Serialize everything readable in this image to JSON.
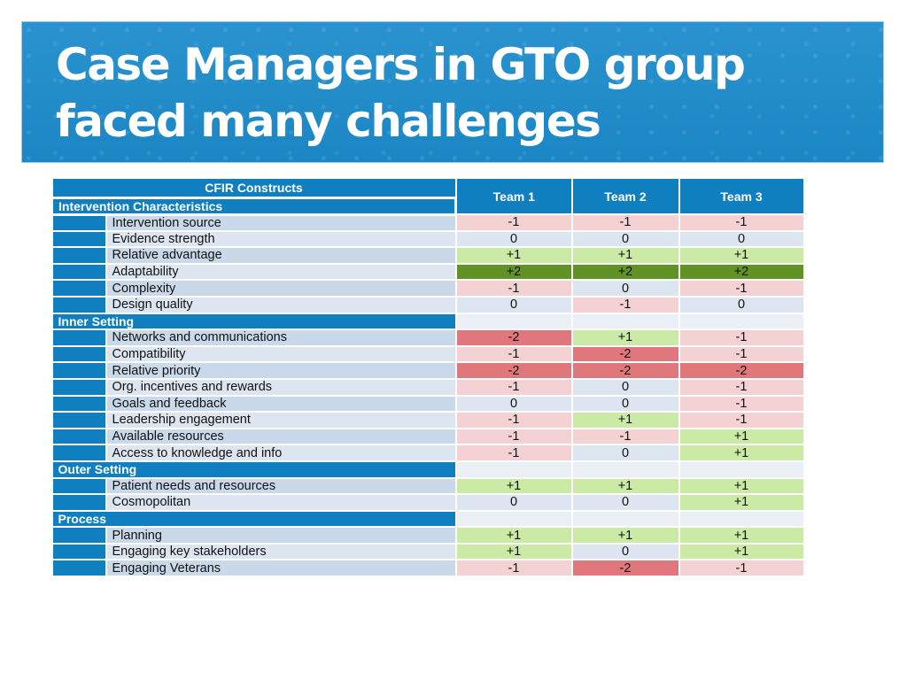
{
  "slide": {
    "title": "Case Managers in GTO group faced many challenges"
  },
  "table": {
    "header": {
      "constructs_label": "CFIR Constructs",
      "teams": [
        "Team 1",
        "Team 2",
        "Team 3"
      ]
    },
    "sections": [
      {
        "name": "Intervention Characteristics",
        "rows": [
          {
            "construct": "Intervention source",
            "values": [
              "-1",
              "-1",
              "-1"
            ]
          },
          {
            "construct": "Evidence strength",
            "values": [
              "0",
              "0",
              "0"
            ]
          },
          {
            "construct": "Relative advantage",
            "values": [
              "+1",
              "+1",
              "+1"
            ]
          },
          {
            "construct": "Adaptability",
            "values": [
              "+2",
              "+2",
              "+2"
            ]
          },
          {
            "construct": "Complexity",
            "values": [
              "-1",
              "0",
              "-1"
            ]
          },
          {
            "construct": "Design quality",
            "values": [
              "0",
              "-1",
              "0"
            ]
          }
        ]
      },
      {
        "name": "Inner Setting",
        "rows": [
          {
            "construct": "Networks and communications",
            "values": [
              "-2",
              "+1",
              "-1"
            ]
          },
          {
            "construct": "Compatibility",
            "values": [
              "-1",
              "-2",
              "-1"
            ]
          },
          {
            "construct": "Relative priority",
            "values": [
              "-2",
              "-2",
              "-2"
            ]
          },
          {
            "construct": "Org. incentives and rewards",
            "values": [
              "-1",
              "0",
              "-1"
            ]
          },
          {
            "construct": "Goals and feedback",
            "values": [
              "0",
              "0",
              "-1"
            ]
          },
          {
            "construct": "Leadership engagement",
            "values": [
              "-1",
              "+1",
              "-1"
            ]
          },
          {
            "construct": "Available resources",
            "values": [
              "-1",
              "-1",
              "+1"
            ]
          },
          {
            "construct": "Access to knowledge and info",
            "values": [
              "-1",
              "0",
              "+1"
            ]
          }
        ]
      },
      {
        "name": "Outer Setting",
        "rows": [
          {
            "construct": "Patient needs and resources",
            "values": [
              "+1",
              "+1",
              "+1"
            ]
          },
          {
            "construct": "Cosmopolitan",
            "values": [
              "0",
              "0",
              "+1"
            ]
          }
        ]
      },
      {
        "name": "Process",
        "rows": [
          {
            "construct": "Planning",
            "values": [
              "+1",
              "+1",
              "+1"
            ]
          },
          {
            "construct": "Engaging key stakeholders",
            "values": [
              "+1",
              "0",
              "+1"
            ]
          },
          {
            "construct": "Engaging Veterans",
            "values": [
              "-1",
              "-2",
              "-1"
            ]
          }
        ]
      }
    ]
  },
  "colors": {
    "banner": "#1b86c4",
    "header": "#0f7fc0",
    "minus_two": "#e0777c",
    "minus_one": "#f4d2d3",
    "zero": "#dde6f0",
    "plus_one": "#cbeaa6",
    "plus_two": "#609225"
  }
}
